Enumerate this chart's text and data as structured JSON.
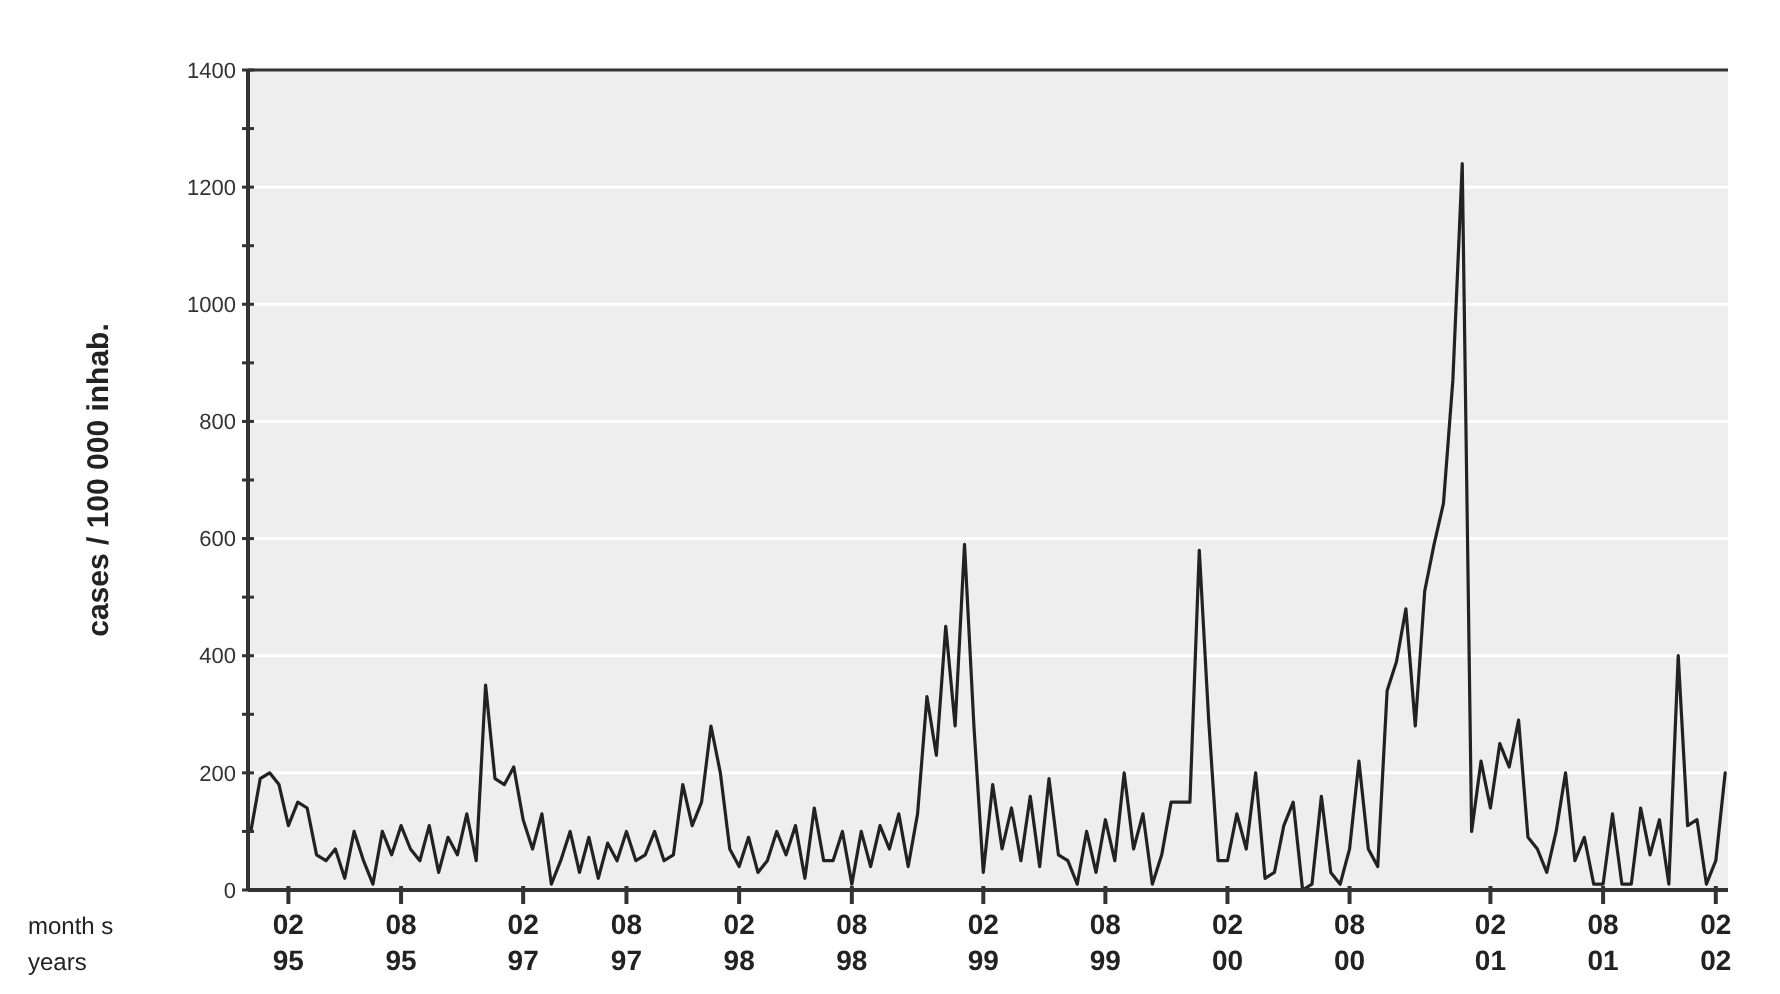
{
  "chart_data": {
    "type": "line",
    "ylabel": "cases / 100 000 inhab.",
    "annotations": [
      "month s",
      "years"
    ],
    "categories": [
      null,
      null,
      null,
      null,
      "02 95",
      null,
      null,
      null,
      null,
      null,
      null,
      null,
      null,
      null,
      null,
      null,
      "08 95",
      null,
      null,
      null,
      null,
      null,
      null,
      null,
      null,
      null,
      null,
      null,
      null,
      "02 97",
      null,
      null,
      null,
      null,
      null,
      null,
      null,
      null,
      null,
      null,
      "08 97",
      null,
      null,
      null,
      null,
      null,
      null,
      null,
      null,
      null,
      null,
      null,
      "02 98",
      null,
      null,
      null,
      null,
      null,
      null,
      null,
      null,
      null,
      null,
      null,
      "08 98",
      null,
      null,
      null,
      null,
      null,
      null,
      null,
      null,
      null,
      null,
      null,
      null,
      null,
      "02 99",
      null,
      null,
      null,
      null,
      null,
      null,
      null,
      null,
      null,
      null,
      null,
      null,
      "08 99",
      null,
      null,
      null,
      null,
      null,
      null,
      null,
      null,
      null,
      null,
      null,
      null,
      "02 00",
      null,
      null,
      null,
      null,
      null,
      null,
      null,
      null,
      null,
      null,
      null,
      null,
      "08 00",
      null,
      null,
      null,
      null,
      null,
      null,
      null,
      null,
      null,
      null,
      null,
      null,
      null,
      null,
      "02 01",
      null,
      null,
      null,
      null,
      null,
      null,
      null,
      null,
      null,
      null,
      null,
      "08 01",
      null,
      null,
      null,
      null,
      null,
      null,
      null,
      null,
      null,
      null,
      null,
      "02 02",
      null
    ],
    "series": [
      {
        "color": "#222222",
        "values": [
          100,
          190,
          200,
          180,
          110,
          150,
          140,
          60,
          50,
          70,
          20,
          100,
          50,
          10,
          100,
          60,
          110,
          70,
          50,
          110,
          30,
          90,
          60,
          130,
          50,
          350,
          190,
          180,
          210,
          120,
          70,
          130,
          10,
          50,
          100,
          30,
          90,
          20,
          80,
          50,
          100,
          50,
          60,
          100,
          50,
          60,
          180,
          110,
          150,
          280,
          200,
          70,
          40,
          90,
          30,
          50,
          100,
          60,
          110,
          20,
          140,
          50,
          50,
          100,
          10,
          100,
          40,
          110,
          70,
          130,
          40,
          130,
          330,
          230,
          450,
          280,
          590,
          280,
          30,
          180,
          70,
          140,
          50,
          160,
          40,
          190,
          60,
          50,
          10,
          100,
          30,
          120,
          50,
          200,
          70,
          130,
          10,
          60,
          150,
          150,
          150,
          580,
          290,
          50,
          50,
          130,
          70,
          200,
          20,
          30,
          110,
          150,
          0,
          10,
          160,
          30,
          10,
          70,
          220,
          70,
          40,
          340,
          390,
          480,
          280,
          510,
          590,
          660,
          870,
          1240,
          100,
          220,
          140,
          250,
          210,
          290,
          90,
          70,
          30,
          100,
          200,
          50,
          90,
          10,
          10,
          130,
          10,
          10,
          140,
          60,
          120,
          10,
          400,
          110,
          120,
          10,
          50,
          200
        ]
      }
    ],
    "ylim": [
      0,
      1400
    ],
    "yticks": [
      0,
      {
        "value": 100,
        "label": null
      },
      200,
      {
        "value": 300,
        "label": null
      },
      400,
      {
        "value": 500,
        "label": null
      },
      600,
      {
        "value": 700,
        "label": null
      },
      800,
      {
        "value": 900,
        "label": null
      },
      1000,
      {
        "value": 1100,
        "label": null
      },
      1200,
      {
        "value": 1300,
        "label": null
      },
      1400
    ],
    "grid": "y",
    "marker": "none",
    "line_style": "solid"
  }
}
